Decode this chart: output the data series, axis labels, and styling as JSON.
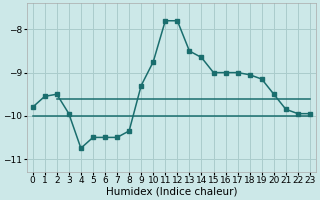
{
  "xlabel": "Humidex (Indice chaleur)",
  "bg_color": "#cce8e8",
  "grid_color": "#aacccc",
  "line_color": "#1a6e6e",
  "xlim": [
    -0.5,
    23.5
  ],
  "ylim": [
    -11.3,
    -7.4
  ],
  "yticks": [
    -11,
    -10,
    -9,
    -8
  ],
  "xticks": [
    0,
    1,
    2,
    3,
    4,
    5,
    6,
    7,
    8,
    9,
    10,
    11,
    12,
    13,
    14,
    15,
    16,
    17,
    18,
    19,
    20,
    21,
    22,
    23
  ],
  "series": [
    {
      "x": [
        0,
        1,
        2,
        3,
        4,
        5,
        6,
        7,
        8,
        9,
        10,
        11,
        12,
        13,
        14,
        15,
        16,
        17,
        18,
        19,
        20,
        21,
        22,
        23
      ],
      "y": [
        -9.8,
        -9.55,
        -9.5,
        -9.95,
        -10.75,
        -10.5,
        -10.5,
        -10.5,
        -10.35,
        -9.3,
        -8.75,
        -7.8,
        -7.8,
        -8.5,
        -8.65,
        -9.0,
        -9.0,
        -9.0,
        -9.05,
        -9.15,
        -9.5,
        -9.85,
        -9.95,
        -9.95
      ],
      "marker": true
    },
    {
      "x": [
        0,
        23
      ],
      "y": [
        -10.0,
        -10.0
      ],
      "marker": false
    },
    {
      "x": [
        2,
        23
      ],
      "y": [
        -9.62,
        -9.62
      ],
      "marker": false
    }
  ],
  "marker_size": 2.8,
  "line_width": 1.1,
  "font_size_xlabel": 7.5,
  "font_size_ticks": 6.5
}
